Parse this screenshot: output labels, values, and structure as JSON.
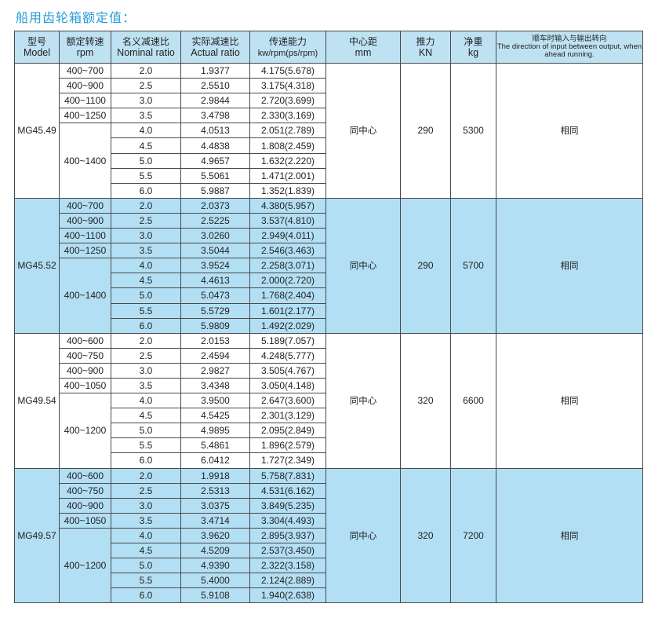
{
  "title": "船用齿轮箱额定值：",
  "header": {
    "model": {
      "cn": "型号",
      "en": "Model"
    },
    "rpm": {
      "cn": "额定转速",
      "en": "rpm"
    },
    "nominal": {
      "cn": "名义减速比",
      "en": "Nominal ratio"
    },
    "actual": {
      "cn": "实际减速比",
      "en": "Actual ratio"
    },
    "power": {
      "cn": "传递能力",
      "en": "kw/rpm(ps/rpm)"
    },
    "center": {
      "cn": "中心距",
      "en": "mm"
    },
    "thrust": {
      "cn": "推力",
      "en": "KN"
    },
    "weight": {
      "cn": "净重",
      "en": "kg"
    },
    "direction": {
      "cn": "顺车时输入与输出转向",
      "en": "The direction of input between output, when ahead running."
    }
  },
  "groups": [
    {
      "model": "MG45.49",
      "center": "同中心",
      "thrust": "290",
      "weight": "5300",
      "direction": "相同",
      "highlight": false,
      "rpm": [
        "400~700",
        "400~900",
        "400~1100",
        "400~1250",
        "400~1400"
      ],
      "rows": [
        [
          "2.0",
          "1.9377",
          "4.175(5.678)"
        ],
        [
          "2.5",
          "2.5510",
          "3.175(4.318)"
        ],
        [
          "3.0",
          "2.9844",
          "2.720(3.699)"
        ],
        [
          "3.5",
          "3.4798",
          "2.330(3.169)"
        ],
        [
          "4.0",
          "4.0513",
          "2.051(2.789)"
        ],
        [
          "4.5",
          "4.4838",
          "1.808(2.459)"
        ],
        [
          "5.0",
          "4.9657",
          "1.632(2.220)"
        ],
        [
          "5.5",
          "5.5061",
          "1.471(2.001)"
        ],
        [
          "6.0",
          "5.9887",
          "1.352(1.839)"
        ]
      ]
    },
    {
      "model": "MG45.52",
      "center": "同中心",
      "thrust": "290",
      "weight": "5700",
      "direction": "相同",
      "highlight": true,
      "rpm": [
        "400~700",
        "400~900",
        "400~1100",
        "400~1250",
        "400~1400"
      ],
      "rows": [
        [
          "2.0",
          "2.0373",
          "4.380(5.957)"
        ],
        [
          "2.5",
          "2.5225",
          "3.537(4.810)"
        ],
        [
          "3.0",
          "3.0260",
          "2.949(4.011)"
        ],
        [
          "3.5",
          "3.5044",
          "2.546(3.463)"
        ],
        [
          "4.0",
          "3.9524",
          "2.258(3.071)"
        ],
        [
          "4.5",
          "4.4613",
          "2.000(2.720)"
        ],
        [
          "5.0",
          "5.0473",
          "1.768(2.404)"
        ],
        [
          "5.5",
          "5.5729",
          "1.601(2.177)"
        ],
        [
          "6.0",
          "5.9809",
          "1.492(2.029)"
        ]
      ]
    },
    {
      "model": "MG49.54",
      "center": "同中心",
      "thrust": "320",
      "weight": "6600",
      "direction": "相同",
      "highlight": false,
      "rpm": [
        "400~600",
        "400~750",
        "400~900",
        "400~1050",
        "400~1200"
      ],
      "rows": [
        [
          "2.0",
          "2.0153",
          "5.189(7.057)"
        ],
        [
          "2.5",
          "2.4594",
          "4.248(5.777)"
        ],
        [
          "3.0",
          "2.9827",
          "3.505(4.767)"
        ],
        [
          "3.5",
          "3.4348",
          "3.050(4.148)"
        ],
        [
          "4.0",
          "3.9500",
          "2.647(3.600)"
        ],
        [
          "4.5",
          "4.5425",
          "2.301(3.129)"
        ],
        [
          "5.0",
          "4.9895",
          "2.095(2.849)"
        ],
        [
          "5.5",
          "5.4861",
          "1.896(2.579)"
        ],
        [
          "6.0",
          "6.0412",
          "1.727(2.349)"
        ]
      ]
    },
    {
      "model": "MG49.57",
      "center": "同中心",
      "thrust": "320",
      "weight": "7200",
      "direction": "相同",
      "highlight": true,
      "rpm": [
        "400~600",
        "400~750",
        "400~900",
        "400~1050",
        "400~1200"
      ],
      "rows": [
        [
          "2.0",
          "1.9918",
          "5.758(7.831)"
        ],
        [
          "2.5",
          "2.5313",
          "4.531(6.162)"
        ],
        [
          "3.0",
          "3.0375",
          "3.849(5.235)"
        ],
        [
          "3.5",
          "3.4714",
          "3.304(4.493)"
        ],
        [
          "4.0",
          "3.9620",
          "2.895(3.937)"
        ],
        [
          "4.5",
          "4.5209",
          "2.537(3.450)"
        ],
        [
          "5.0",
          "4.9390",
          "2.322(3.158)"
        ],
        [
          "5.5",
          "5.4000",
          "2.124(2.889)"
        ],
        [
          "6.0",
          "5.9108",
          "1.940(2.638)"
        ]
      ]
    }
  ],
  "colors": {
    "title": "#2a9bd6",
    "header_bg": "#bfe2f3",
    "highlight_bg": "#b3dff4",
    "border": "#4a4a4a"
  }
}
